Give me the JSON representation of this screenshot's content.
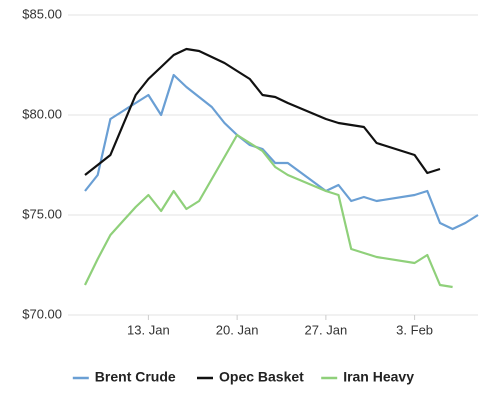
{
  "chart_data": {
    "type": "line",
    "x": [
      8,
      9,
      10,
      11,
      12,
      13,
      14,
      15,
      16,
      17,
      18,
      19,
      20,
      21,
      22,
      23,
      24,
      27,
      28,
      29,
      30,
      31,
      34,
      35,
      36,
      37,
      38,
      39
    ],
    "xlim": [
      8,
      39
    ],
    "xticks": [
      {
        "value": 13,
        "label": "13. Jan"
      },
      {
        "value": 20,
        "label": "20. Jan"
      },
      {
        "value": 27,
        "label": "27. Jan"
      },
      {
        "value": 34,
        "label": "3. Feb"
      }
    ],
    "ylim": [
      70,
      85
    ],
    "yticks": [
      {
        "value": 70,
        "label": "$70.00"
      },
      {
        "value": 75,
        "label": "$75.00"
      },
      {
        "value": 80,
        "label": "$80.00"
      },
      {
        "value": 85,
        "label": "$85.00"
      }
    ],
    "grid": true,
    "legend": "bottom",
    "series": [
      {
        "name": "Brent Crude",
        "color": "#6a9fd4",
        "values": [
          76.2,
          77.0,
          79.8,
          80.2,
          80.6,
          81.0,
          80.0,
          82.0,
          81.4,
          80.9,
          80.4,
          79.6,
          79.0,
          78.5,
          78.3,
          77.6,
          77.6,
          76.2,
          76.5,
          75.7,
          75.9,
          75.7,
          76.0,
          76.2,
          74.6,
          74.3,
          74.6,
          75.0
        ]
      },
      {
        "name": "Opec Basket",
        "color": "#111111",
        "values": [
          77.0,
          77.5,
          78.0,
          79.5,
          81.0,
          81.8,
          82.4,
          83.0,
          83.3,
          83.2,
          82.9,
          82.6,
          82.2,
          81.8,
          81.0,
          80.9,
          80.6,
          79.8,
          79.6,
          79.5,
          79.4,
          78.6,
          78.0,
          77.1,
          77.3,
          null,
          null,
          null
        ]
      },
      {
        "name": "Iran Heavy",
        "color": "#8fd07a",
        "values": [
          71.5,
          72.8,
          74.0,
          74.7,
          75.4,
          76.0,
          75.2,
          76.2,
          75.3,
          75.7,
          76.8,
          77.9,
          79.0,
          78.6,
          78.2,
          77.4,
          77.0,
          76.2,
          76.0,
          73.3,
          73.1,
          72.9,
          72.6,
          73.0,
          71.5,
          71.4,
          null,
          null
        ]
      }
    ]
  }
}
